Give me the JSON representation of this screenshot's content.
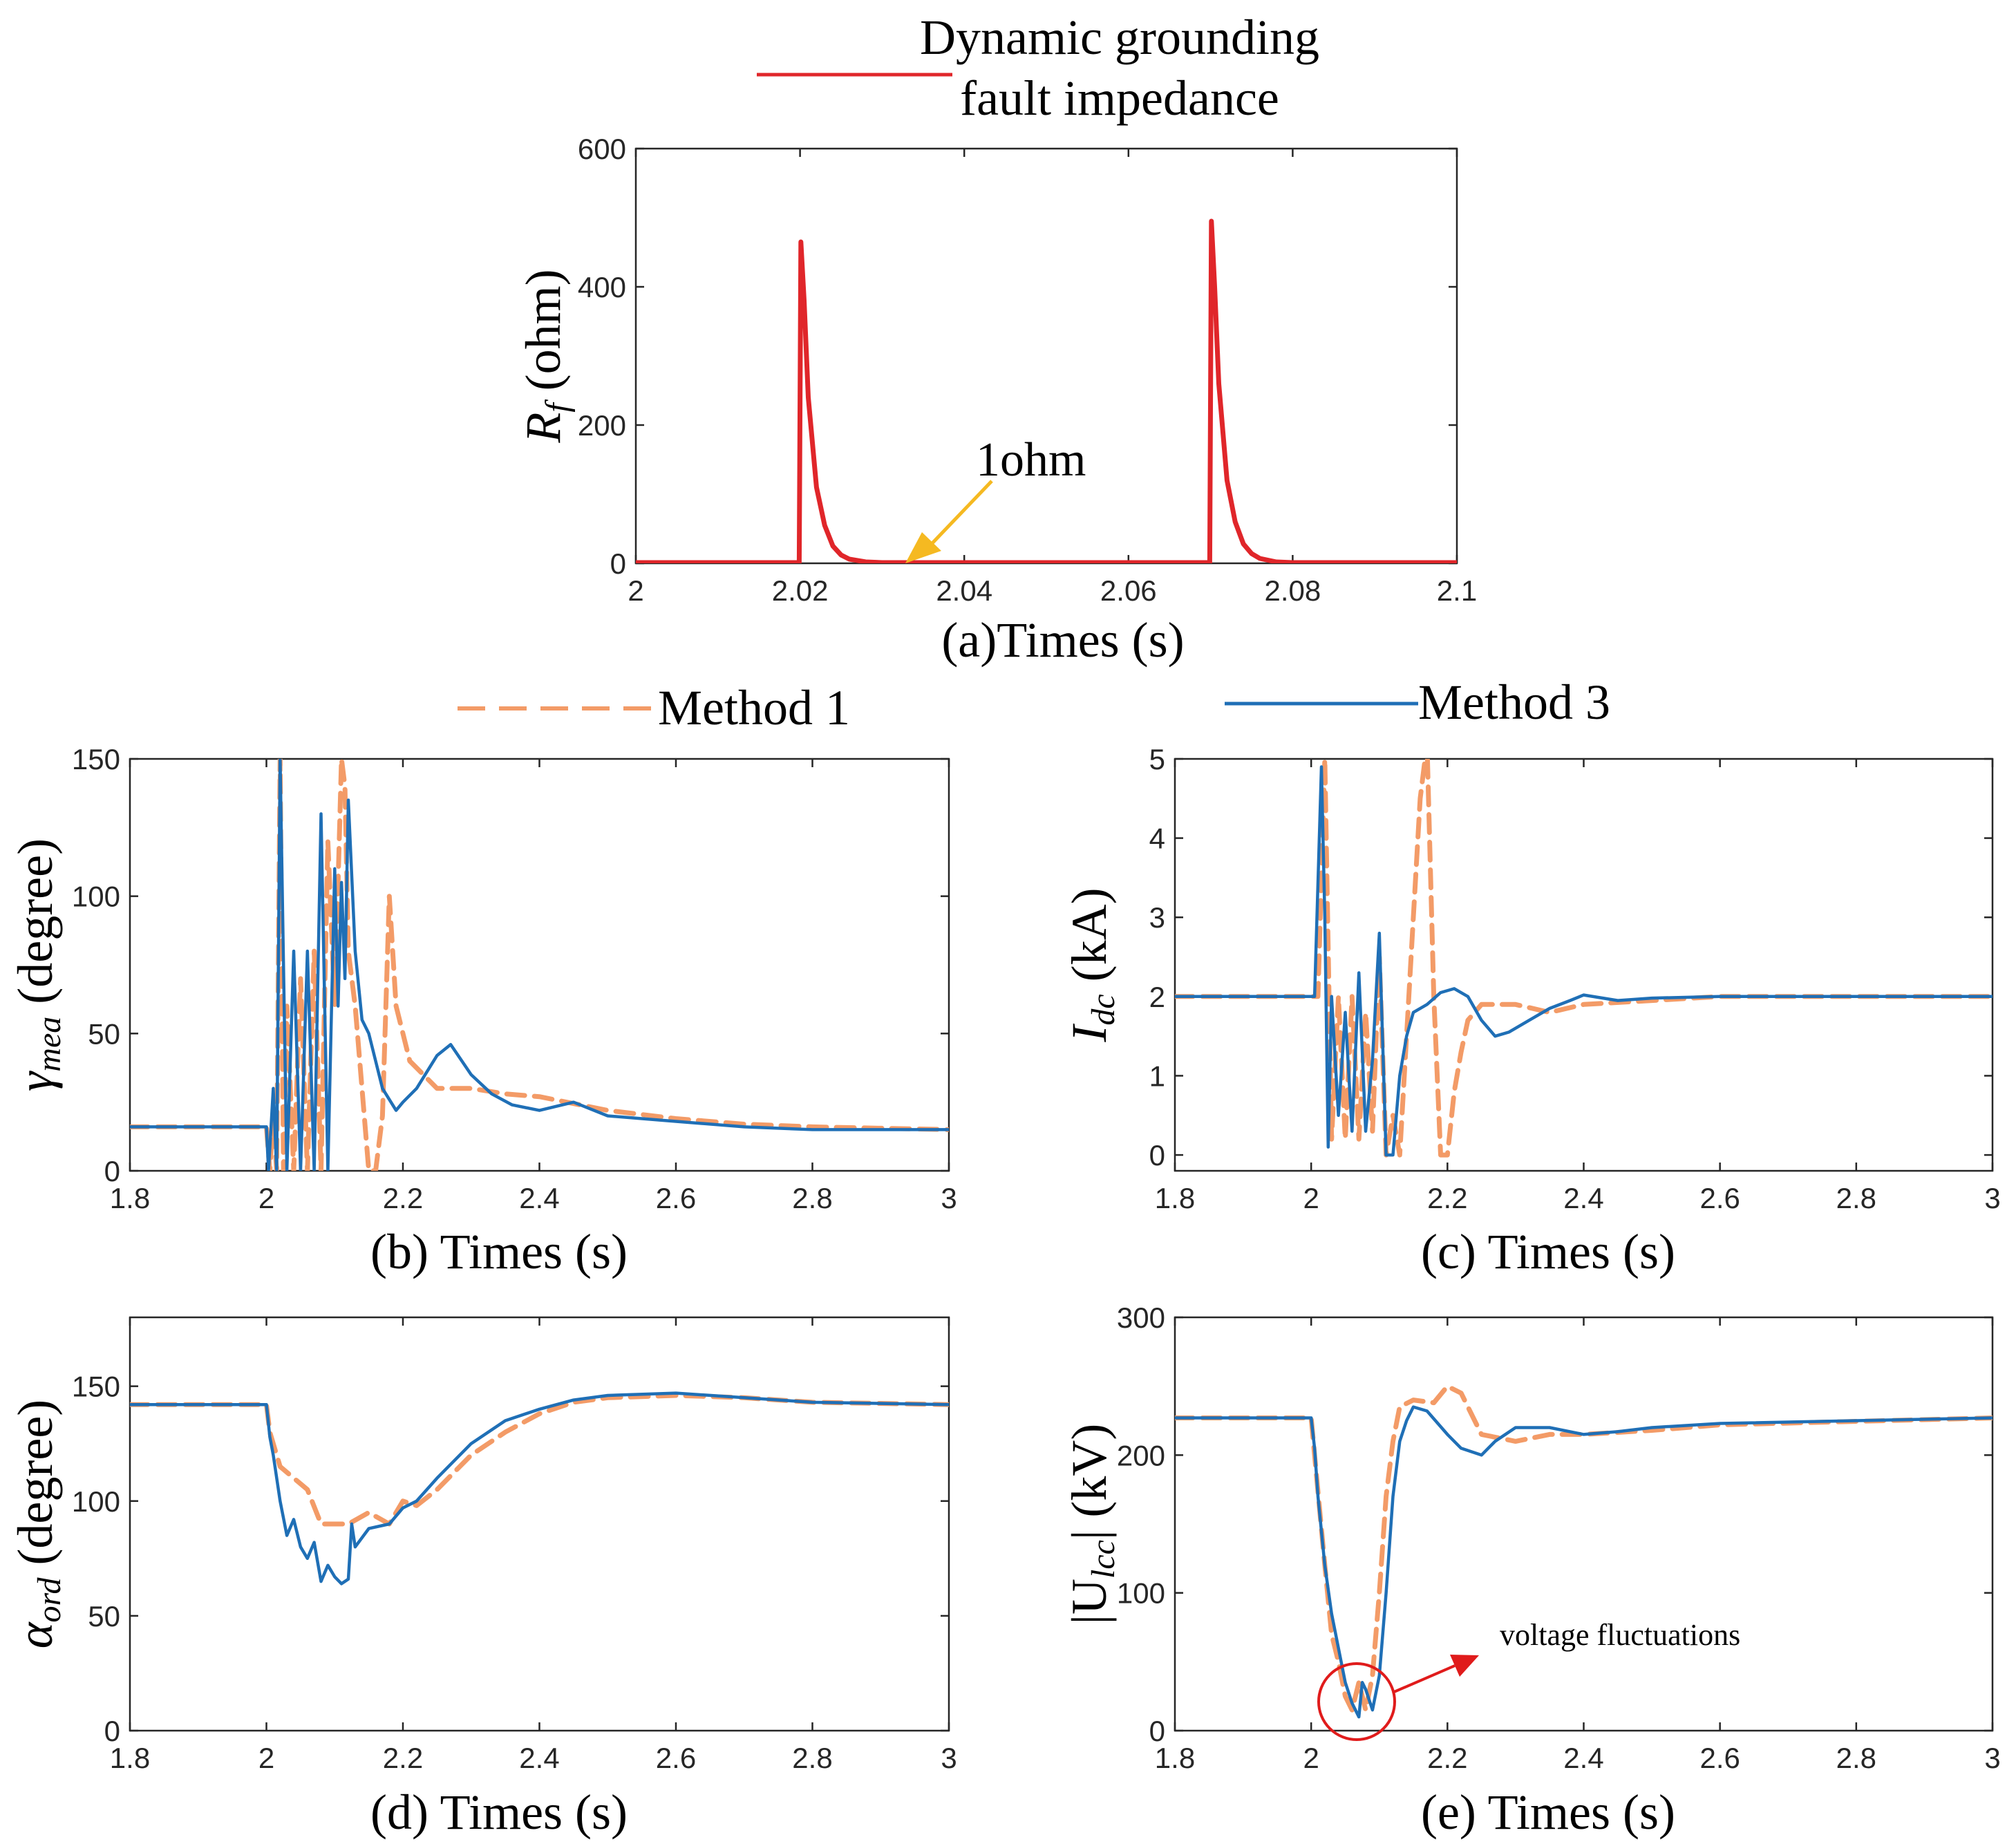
{
  "legend_a": {
    "label_line1": "Dynamic grounding",
    "label_line2": "fault impedance",
    "color": "#e0262a"
  },
  "legend_methods": [
    {
      "label": "Method 1",
      "color": "#f39b67",
      "style": "dashed"
    },
    {
      "label": "Method 3",
      "color": "#1f6fb6",
      "style": "solid"
    }
  ],
  "panels": {
    "a": {
      "caption": "(a)Times (s)",
      "ylabel_main": "R",
      "ylabel_sub": "f",
      "ylabel_unit": " (ohm)",
      "xticks": [
        "2",
        "2.02",
        "2.04",
        "2.06",
        "2.08",
        "2.1"
      ],
      "yticks": [
        "0",
        "200",
        "400",
        "600"
      ],
      "annotation": "1ohm"
    },
    "b": {
      "caption": "(b) Times (s)",
      "ylabel_main": "γ",
      "ylabel_sub": "mea",
      "ylabel_unit": " (degree)",
      "xticks": [
        "1.8",
        "2",
        "2.2",
        "2.4",
        "2.6",
        "2.8",
        "3"
      ],
      "yticks": [
        "0",
        "50",
        "100",
        "150"
      ]
    },
    "c": {
      "caption": "(c) Times (s)",
      "ylabel_main": "I",
      "ylabel_sub": "dc",
      "ylabel_unit": " (kA)",
      "xticks": [
        "1.8",
        "2",
        "2.2",
        "2.4",
        "2.6",
        "2.8",
        "3"
      ],
      "yticks": [
        "0",
        "1",
        "2",
        "3",
        "4",
        "5"
      ]
    },
    "d": {
      "caption": "(d) Times (s)",
      "ylabel_main": "α",
      "ylabel_sub": "ord",
      "ylabel_unit": " (degree)",
      "xticks": [
        "1.8",
        "2",
        "2.2",
        "2.4",
        "2.6",
        "2.8",
        "3"
      ],
      "yticks": [
        "0",
        "50",
        "100",
        "150"
      ]
    },
    "e": {
      "caption": "(e) Times (s)",
      "ylabel_main": "|U",
      "ylabel_sub": "lcc",
      "ylabel_unit": "| (kV)",
      "xticks": [
        "1.8",
        "2",
        "2.2",
        "2.4",
        "2.6",
        "2.8",
        "3"
      ],
      "yticks": [
        "0",
        "100",
        "200",
        "300"
      ],
      "annotation": "voltage fluctuations",
      "annotation_color": "#e01b1b"
    }
  },
  "chart_data": [
    {
      "id": "a",
      "type": "line",
      "xlim": [
        2,
        2.1
      ],
      "ylim": [
        0,
        600
      ],
      "grid": false,
      "series": [
        {
          "color": "#e0262a",
          "x": [
            2.0,
            2.0195,
            2.0199,
            2.0201,
            2.0205,
            2.021,
            2.022,
            2.023,
            2.024,
            2.025,
            2.026,
            2.028,
            2.03,
            2.069,
            2.0699,
            2.0701,
            2.0705,
            2.071,
            2.072,
            2.073,
            2.074,
            2.075,
            2.076,
            2.078,
            2.08,
            2.1
          ],
          "y": [
            1,
            1,
            1,
            465,
            380,
            240,
            110,
            55,
            25,
            12,
            6,
            2,
            1,
            1,
            1,
            495,
            400,
            260,
            120,
            60,
            28,
            14,
            7,
            2,
            1,
            1
          ]
        }
      ]
    },
    {
      "id": "b",
      "type": "line",
      "xlim": [
        1.8,
        3
      ],
      "ylim": [
        0,
        150
      ],
      "grid": false,
      "series": [
        {
          "name": "Method 1",
          "color": "#f39b67",
          "dashed": true,
          "x": [
            1.8,
            2.0,
            2.005,
            2.01,
            2.015,
            2.02,
            2.025,
            2.03,
            2.04,
            2.05,
            2.06,
            2.07,
            2.08,
            2.09,
            2.1,
            2.11,
            2.115,
            2.12,
            2.13,
            2.14,
            2.15,
            2.16,
            2.17,
            2.18,
            2.19,
            2.2,
            2.21,
            2.23,
            2.25,
            2.28,
            2.3,
            2.35,
            2.4,
            2.5,
            2.6,
            2.7,
            2.8,
            3.0
          ],
          "y": [
            16,
            16,
            0,
            20,
            0,
            150,
            0,
            60,
            0,
            70,
            0,
            80,
            0,
            120,
            60,
            150,
            140,
            80,
            60,
            30,
            0,
            0,
            20,
            100,
            60,
            50,
            40,
            35,
            30,
            30,
            30,
            28,
            27,
            22,
            19,
            17,
            16,
            15
          ]
        },
        {
          "name": "Method 3",
          "color": "#1f6fb6",
          "x": [
            1.8,
            2.0,
            2.003,
            2.01,
            2.015,
            2.02,
            2.03,
            2.04,
            2.05,
            2.06,
            2.07,
            2.08,
            2.09,
            2.1,
            2.105,
            2.11,
            2.115,
            2.12,
            2.13,
            2.14,
            2.15,
            2.17,
            2.19,
            2.2,
            2.22,
            2.25,
            2.27,
            2.3,
            2.33,
            2.36,
            2.4,
            2.45,
            2.5,
            2.6,
            2.7,
            2.8,
            3.0
          ],
          "y": [
            16,
            16,
            0,
            30,
            0,
            150,
            0,
            80,
            0,
            80,
            0,
            130,
            0,
            110,
            60,
            105,
            70,
            135,
            80,
            55,
            50,
            30,
            22,
            25,
            30,
            42,
            46,
            35,
            28,
            24,
            22,
            25,
            20,
            18,
            16,
            15,
            15
          ]
        }
      ]
    },
    {
      "id": "c",
      "type": "line",
      "xlim": [
        1.8,
        3
      ],
      "ylim": [
        -0.2,
        5
      ],
      "grid": false,
      "series": [
        {
          "name": "Method 1",
          "color": "#f39b67",
          "dashed": true,
          "x": [
            1.8,
            2.0,
            2.01,
            2.02,
            2.03,
            2.04,
            2.05,
            2.06,
            2.07,
            2.08,
            2.09,
            2.1,
            2.11,
            2.12,
            2.13,
            2.14,
            2.15,
            2.16,
            2.17,
            2.18,
            2.19,
            2.2,
            2.21,
            2.22,
            2.23,
            2.25,
            2.3,
            2.35,
            2.4,
            2.5,
            2.6,
            3.0
          ],
          "y": [
            2,
            2,
            2,
            5,
            0.2,
            2,
            0.2,
            2,
            0.2,
            1.8,
            0.3,
            2.5,
            0,
            0.5,
            0,
            1.5,
            3,
            4.5,
            5.2,
            2,
            0,
            0,
            0.8,
            1.3,
            1.7,
            1.9,
            1.9,
            1.8,
            1.9,
            1.95,
            2,
            2
          ]
        },
        {
          "name": "Method 3",
          "color": "#1f6fb6",
          "x": [
            1.8,
            2.0,
            2.005,
            2.015,
            2.02,
            2.025,
            2.03,
            2.04,
            2.05,
            2.06,
            2.07,
            2.08,
            2.09,
            2.1,
            2.11,
            2.12,
            2.13,
            2.14,
            2.15,
            2.17,
            2.19,
            2.21,
            2.23,
            2.25,
            2.27,
            2.29,
            2.32,
            2.35,
            2.38,
            2.4,
            2.45,
            2.5,
            2.6,
            3.0
          ],
          "y": [
            2,
            2,
            2,
            4.9,
            3,
            0.1,
            2,
            0.5,
            1.8,
            0.3,
            2.3,
            0.3,
            1.2,
            2.8,
            0,
            0,
            1,
            1.5,
            1.8,
            1.9,
            2.05,
            2.1,
            2.0,
            1.7,
            1.5,
            1.55,
            1.7,
            1.85,
            1.95,
            2.02,
            1.95,
            1.98,
            2,
            2
          ]
        }
      ]
    },
    {
      "id": "d",
      "type": "line",
      "xlim": [
        1.8,
        3
      ],
      "ylim": [
        0,
        180
      ],
      "grid": false,
      "series": [
        {
          "name": "Method 1",
          "color": "#f39b67",
          "dashed": true,
          "x": [
            1.8,
            2.0,
            2.005,
            2.02,
            2.04,
            2.06,
            2.08,
            2.1,
            2.12,
            2.15,
            2.18,
            2.2,
            2.22,
            2.25,
            2.3,
            2.35,
            2.4,
            2.45,
            2.5,
            2.6,
            2.7,
            2.8,
            3.0
          ],
          "y": [
            142,
            142,
            130,
            115,
            110,
            105,
            90,
            90,
            90,
            95,
            90,
            100,
            98,
            105,
            120,
            130,
            138,
            143,
            145,
            146,
            145,
            143,
            142
          ]
        },
        {
          "name": "Method 3",
          "color": "#1f6fb6",
          "x": [
            1.8,
            2.0,
            2.005,
            2.01,
            2.02,
            2.03,
            2.04,
            2.05,
            2.06,
            2.07,
            2.08,
            2.09,
            2.1,
            2.11,
            2.12,
            2.125,
            2.13,
            2.15,
            2.18,
            2.2,
            2.22,
            2.25,
            2.3,
            2.35,
            2.4,
            2.45,
            2.5,
            2.6,
            2.7,
            2.8,
            3.0
          ],
          "y": [
            142,
            142,
            128,
            120,
            100,
            85,
            92,
            80,
            75,
            82,
            65,
            72,
            67,
            64,
            66,
            90,
            80,
            88,
            90,
            97,
            100,
            110,
            125,
            135,
            140,
            144,
            146,
            147,
            145,
            143,
            142
          ]
        }
      ]
    },
    {
      "id": "e",
      "type": "line",
      "xlim": [
        1.8,
        3
      ],
      "ylim": [
        0,
        300
      ],
      "grid": false,
      "series": [
        {
          "name": "Method 1",
          "color": "#f39b67",
          "dashed": true,
          "x": [
            1.8,
            2.0,
            2.005,
            2.02,
            2.03,
            2.04,
            2.05,
            2.06,
            2.07,
            2.08,
            2.09,
            2.1,
            2.11,
            2.12,
            2.13,
            2.15,
            2.18,
            2.2,
            2.22,
            2.25,
            2.3,
            2.35,
            2.4,
            2.5,
            2.6,
            3.0
          ],
          "y": [
            227,
            227,
            200,
            120,
            70,
            50,
            25,
            15,
            35,
            15,
            40,
            100,
            170,
            210,
            235,
            240,
            238,
            250,
            245,
            215,
            210,
            215,
            215,
            218,
            222,
            227
          ]
        },
        {
          "name": "Method 3",
          "color": "#1f6fb6",
          "x": [
            1.8,
            2.0,
            2.005,
            2.01,
            2.02,
            2.03,
            2.04,
            2.05,
            2.06,
            2.07,
            2.075,
            2.08,
            2.09,
            2.1,
            2.11,
            2.12,
            2.13,
            2.14,
            2.15,
            2.17,
            2.2,
            2.22,
            2.25,
            2.27,
            2.3,
            2.35,
            2.4,
            2.45,
            2.5,
            2.6,
            3.0
          ],
          "y": [
            227,
            227,
            205,
            170,
            120,
            85,
            60,
            35,
            20,
            10,
            35,
            30,
            15,
            40,
            100,
            170,
            210,
            225,
            235,
            232,
            215,
            205,
            200,
            210,
            220,
            220,
            215,
            217,
            220,
            223,
            227
          ]
        }
      ]
    }
  ]
}
